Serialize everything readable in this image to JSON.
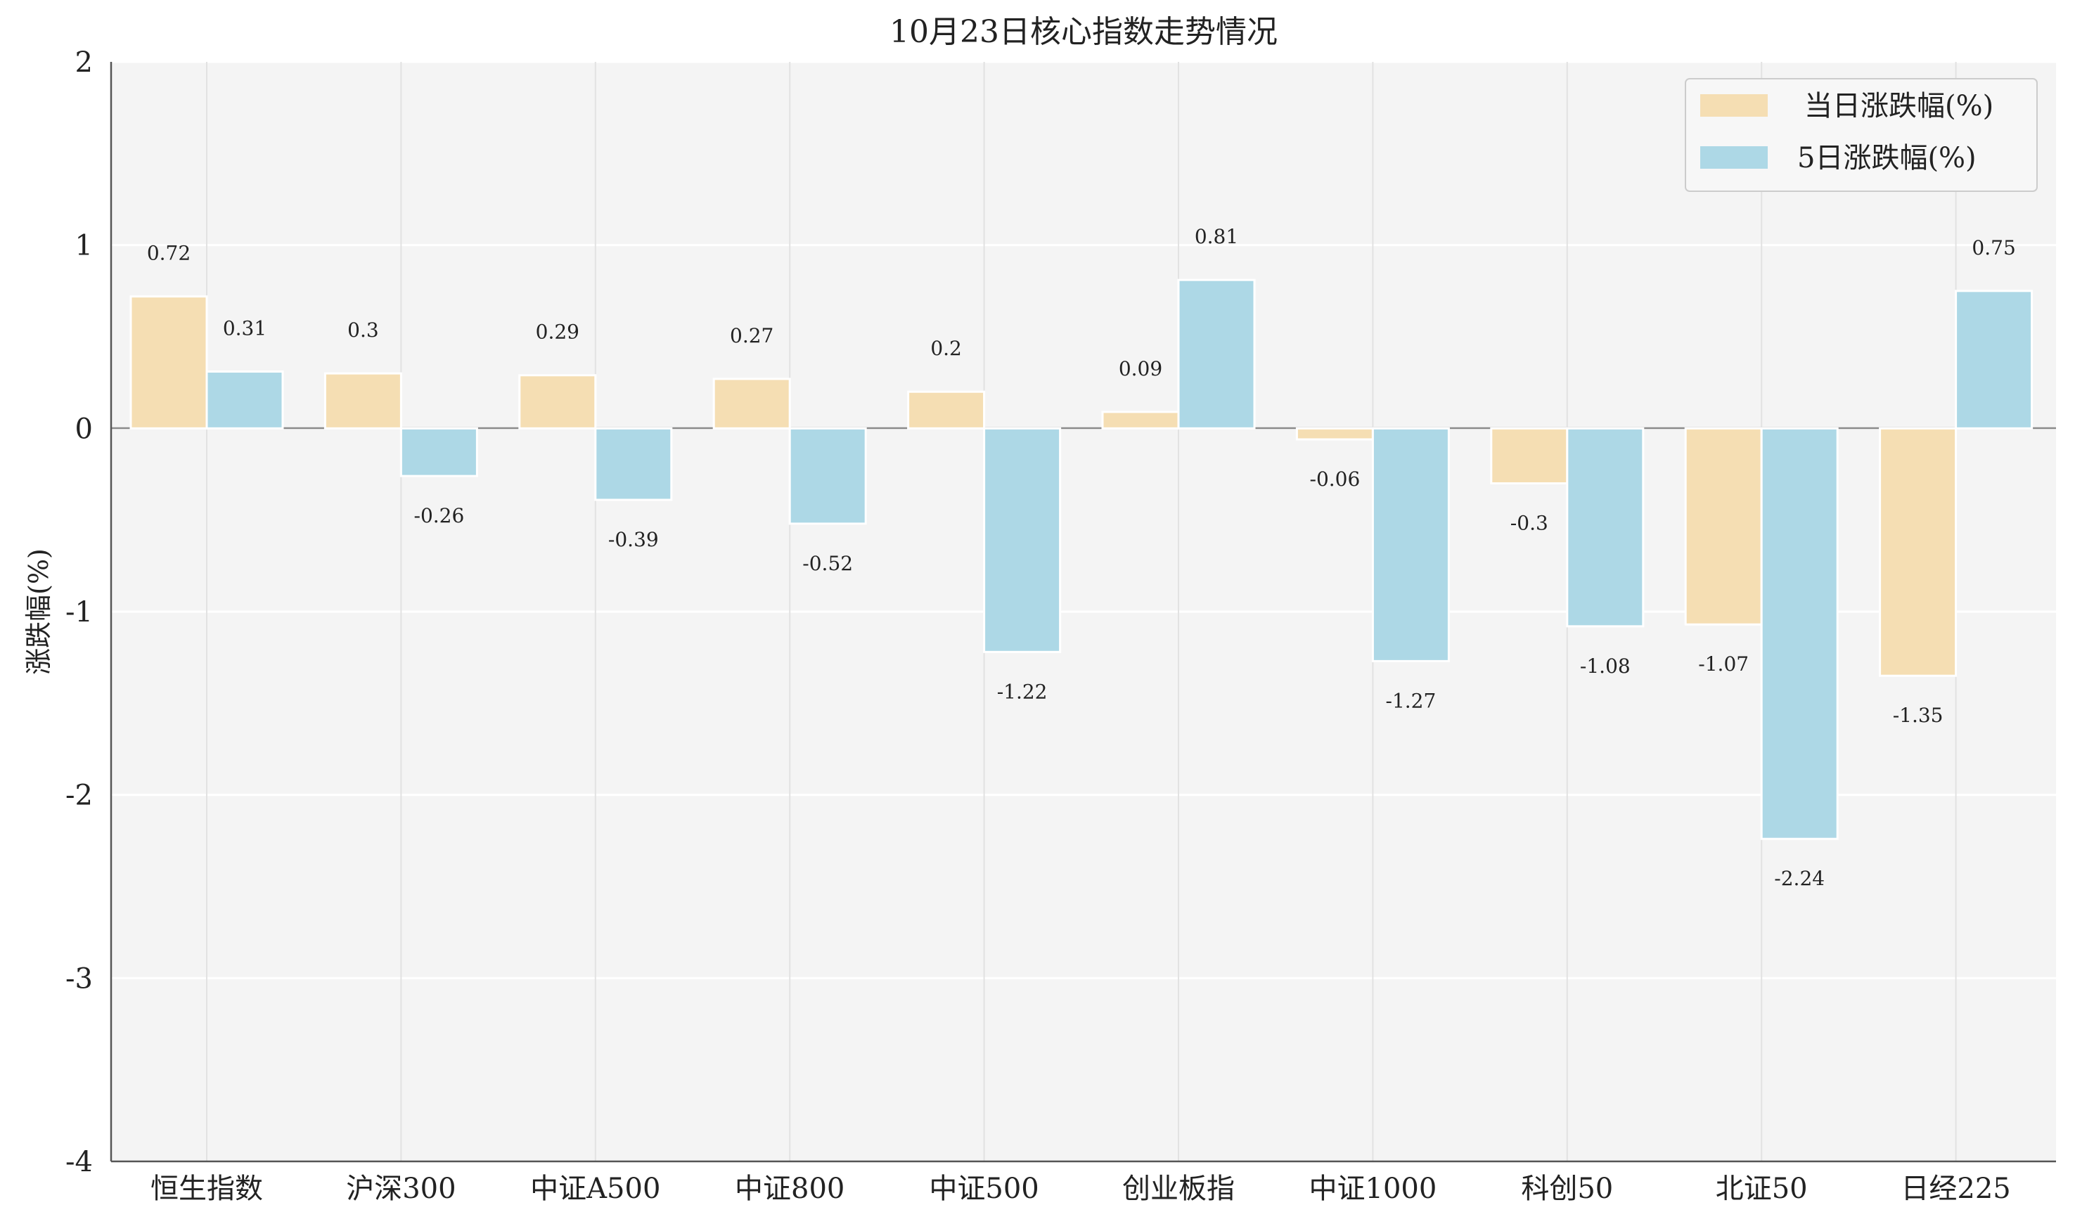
{
  "chart_data": {
    "type": "bar",
    "title": "10月23日核心指数走势情况",
    "xlabel": "",
    "ylabel": "涨跌幅(%)",
    "ylim": [
      -4,
      2
    ],
    "yticks": [
      2,
      1,
      0,
      -1,
      -2,
      -3,
      -4
    ],
    "grid": true,
    "legend_position": "top-right",
    "categories": [
      "恒生指数",
      "沪深300",
      "中证A500",
      "中证800",
      "中证500",
      "创业板指",
      "中证1000",
      "科创50",
      "北证50",
      "日经225"
    ],
    "series": [
      {
        "name": "当日涨跌幅(%)",
        "color": "#f5deb3",
        "values": [
          0.72,
          0.3,
          0.29,
          0.27,
          0.2,
          0.09,
          -0.06,
          -0.3,
          -1.07,
          -1.35
        ]
      },
      {
        "name": "5日涨跌幅(%)",
        "color": "#add8e6",
        "values": [
          0.31,
          -0.26,
          -0.39,
          -0.52,
          -1.22,
          0.81,
          -1.27,
          -1.08,
          -2.24,
          0.75
        ]
      }
    ]
  }
}
